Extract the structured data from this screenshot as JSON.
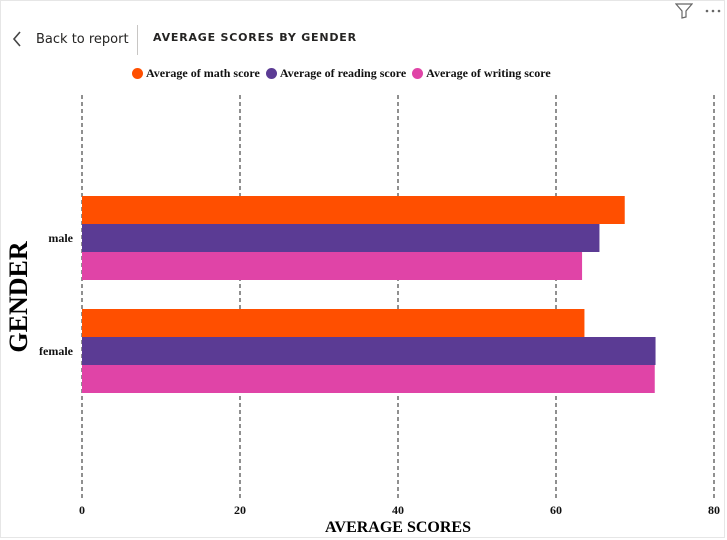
{
  "header": {
    "back_label": "Back to report",
    "report_title": "AVERAGE SCORES BY GENDER"
  },
  "icons": {
    "back": "chevron-left-icon",
    "filter": "filter-icon",
    "more": "more-options-icon"
  },
  "chart_data": {
    "type": "bar",
    "orientation": "horizontal",
    "categories": [
      "male",
      "female"
    ],
    "series": [
      {
        "name": "Average of math score",
        "color": "#FF4F00",
        "values": [
          68.7,
          63.6
        ]
      },
      {
        "name": "Average of reading score",
        "color": "#5B3B94",
        "values": [
          65.5,
          72.6
        ]
      },
      {
        "name": "Average of writing score",
        "color": "#E044A7",
        "values": [
          63.3,
          72.5
        ]
      }
    ],
    "xlabel": "AVERAGE SCORES",
    "ylabel": "GENDER",
    "xlim": [
      0,
      80
    ],
    "xticks": [
      "0",
      "20",
      "40",
      "60",
      "80"
    ],
    "grid": true,
    "legend_position": "top"
  }
}
